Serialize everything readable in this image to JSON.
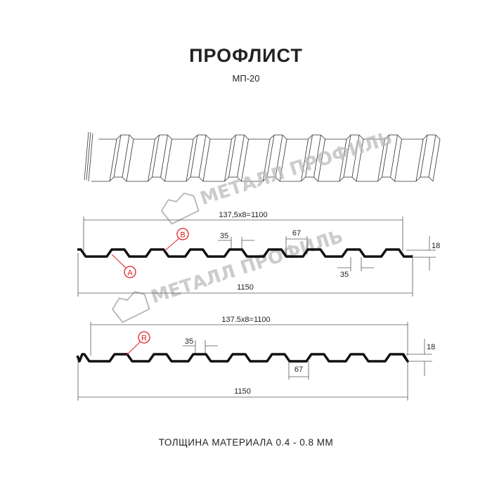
{
  "title": "ПРОФЛИСТ",
  "subtitle": "МП-20",
  "footer": "ТОЛЩИНА МАТЕРИАЛА 0.4 - 0.8 ММ",
  "watermark": "МЕТАЛЛ ПРОФИЛЬ",
  "colors": {
    "profile": "#111111",
    "marker": "#e02020",
    "watermark": "#bbbbbb"
  },
  "profile_a": {
    "pitch_label": "137,5x8=1100",
    "width_label": "1150",
    "top_width_label": "35",
    "bottom_width_label": "35",
    "trough_label": "67",
    "height_label": "18",
    "markers": [
      "B",
      "A"
    ]
  },
  "profile_b": {
    "pitch_label": "137.5x8=1100",
    "width_label": "1150",
    "top_width_label": "35",
    "trough_label": "67",
    "height_label": "18",
    "markers": [
      "R"
    ]
  }
}
